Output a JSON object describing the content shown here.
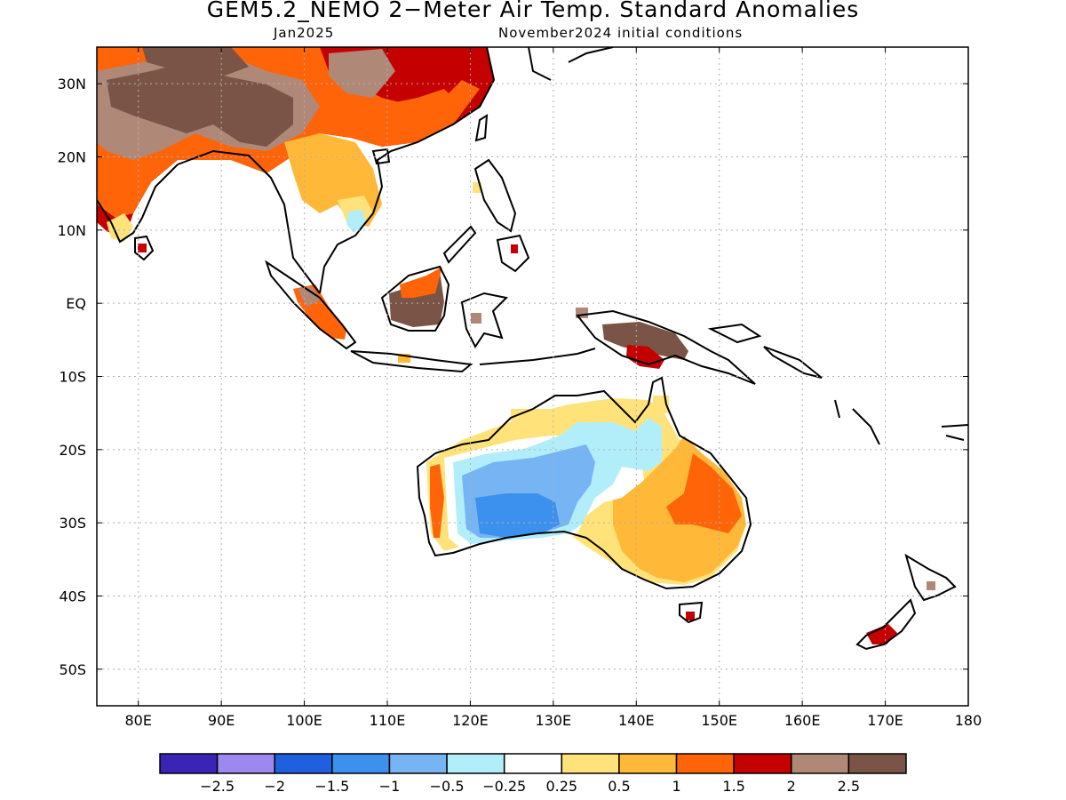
{
  "title": "GEM5.2_NEMO 2−Meter Air Temp. Standard Anomalies",
  "subtitle_left": "Jan2025",
  "subtitle_right": "November2024 initial conditions",
  "map": {
    "lon_range": [
      75,
      180
    ],
    "lat_range": [
      -55,
      35
    ],
    "x_ticks": [
      {
        "lon": 80,
        "label": "80E"
      },
      {
        "lon": 90,
        "label": "90E"
      },
      {
        "lon": 100,
        "label": "100E"
      },
      {
        "lon": 110,
        "label": "110E"
      },
      {
        "lon": 120,
        "label": "120E"
      },
      {
        "lon": 130,
        "label": "130E"
      },
      {
        "lon": 140,
        "label": "140E"
      },
      {
        "lon": 150,
        "label": "150E"
      },
      {
        "lon": 160,
        "label": "160E"
      },
      {
        "lon": 170,
        "label": "170E"
      },
      {
        "lon": 180,
        "label": "180"
      }
    ],
    "y_ticks": [
      {
        "lat": 30,
        "label": "30N"
      },
      {
        "lat": 20,
        "label": "20N"
      },
      {
        "lat": 10,
        "label": "10N"
      },
      {
        "lat": 0,
        "label": "EQ"
      },
      {
        "lat": -10,
        "label": "10S"
      },
      {
        "lat": -20,
        "label": "20S"
      },
      {
        "lat": -30,
        "label": "30S"
      },
      {
        "lat": -40,
        "label": "40S"
      },
      {
        "lat": -50,
        "label": "50S"
      }
    ],
    "grid": true
  },
  "legend": {
    "colors": [
      "#3a24b8",
      "#9d88f0",
      "#1f5fe0",
      "#3c90ee",
      "#76b4f4",
      "#b2eefa",
      "#ffffff",
      "#ffe37a",
      "#ffb838",
      "#ff6408",
      "#c40000",
      "#b08878",
      "#7a5446"
    ],
    "labels": [
      "−2.5",
      "−2",
      "−1.5",
      "−1",
      "−0.5",
      "−0.25",
      "0.25",
      "0.5",
      "1",
      "1.5",
      "2",
      "2.5"
    ]
  }
}
